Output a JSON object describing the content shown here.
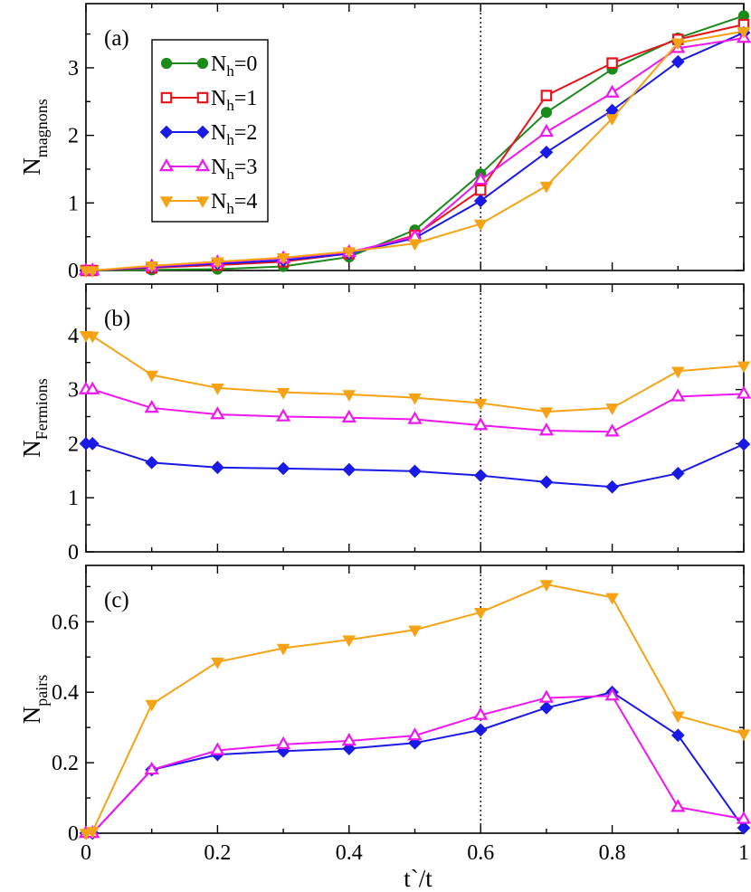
{
  "chart_data": [
    {
      "type": "line",
      "panel_label": "(a)",
      "ylabel_main": "N",
      "ylabel_sub": "magnons",
      "xlabel": "",
      "xlim": [
        0,
        1
      ],
      "ylim": [
        0,
        3.95
      ],
      "xticks": [
        0,
        0.2,
        0.4,
        0.6,
        0.8,
        1
      ],
      "xtick_labels": [],
      "yticks": [
        0,
        1,
        2,
        3
      ],
      "ytick_labels": [
        "0",
        "1",
        "2",
        "3"
      ],
      "vline_x": 0.6,
      "legend": {
        "position": "upper-left",
        "entries": [
          {
            "main": "N",
            "sub": "h",
            "suffix": "=0"
          },
          {
            "main": "N",
            "sub": "h",
            "suffix": "=1"
          },
          {
            "main": "N",
            "sub": "h",
            "suffix": "=2"
          },
          {
            "main": "N",
            "sub": "h",
            "suffix": "=3"
          },
          {
            "main": "N",
            "sub": "h",
            "suffix": "=4"
          }
        ]
      },
      "series": [
        {
          "name": "Nh=0",
          "color": "#1a8a1a",
          "marker": "circle",
          "x": [
            0,
            0.01,
            0.1,
            0.2,
            0.3,
            0.4,
            0.5,
            0.6,
            0.7,
            0.8,
            0.9,
            1.0
          ],
          "y": [
            0,
            0,
            0.01,
            0.02,
            0.06,
            0.2,
            0.6,
            1.43,
            2.34,
            2.98,
            3.44,
            3.77
          ]
        },
        {
          "name": "Nh=1",
          "color": "#e8141b",
          "marker": "square",
          "x": [
            0,
            0.01,
            0.1,
            0.2,
            0.3,
            0.4,
            0.5,
            0.6,
            0.7,
            0.8,
            0.9,
            1.0
          ],
          "y": [
            0,
            0,
            0.04,
            0.08,
            0.13,
            0.25,
            0.52,
            1.19,
            2.59,
            3.07,
            3.42,
            3.64
          ]
        },
        {
          "name": "Nh=2",
          "color": "#1a1ae6",
          "marker": "diamond",
          "x": [
            0,
            0.01,
            0.1,
            0.2,
            0.3,
            0.4,
            0.5,
            0.6,
            0.7,
            0.8,
            0.9,
            1.0
          ],
          "y": [
            0,
            0,
            0.05,
            0.1,
            0.15,
            0.25,
            0.48,
            1.03,
            1.75,
            2.37,
            3.09,
            3.52
          ]
        },
        {
          "name": "Nh=3",
          "color": "#ee17ee",
          "marker": "triangle-up",
          "x": [
            0,
            0.01,
            0.1,
            0.2,
            0.3,
            0.4,
            0.5,
            0.6,
            0.7,
            0.8,
            0.9,
            1.0
          ],
          "y": [
            0,
            0,
            0.06,
            0.12,
            0.18,
            0.27,
            0.5,
            1.34,
            2.05,
            2.63,
            3.29,
            3.44
          ]
        },
        {
          "name": "Nh=4",
          "color": "#f5a215",
          "marker": "triangle-down",
          "x": [
            0,
            0.01,
            0.1,
            0.2,
            0.3,
            0.4,
            0.5,
            0.6,
            0.7,
            0.8,
            0.9,
            1.0
          ],
          "y": [
            0,
            0,
            0.07,
            0.13,
            0.19,
            0.28,
            0.4,
            0.69,
            1.25,
            2.25,
            3.37,
            3.54
          ]
        }
      ]
    },
    {
      "type": "line",
      "panel_label": "(b)",
      "ylabel_main": "N",
      "ylabel_sub": "Fermions",
      "xlabel": "",
      "xlim": [
        0,
        1
      ],
      "ylim": [
        0,
        4.95
      ],
      "xticks": [
        0,
        0.2,
        0.4,
        0.6,
        0.8,
        1
      ],
      "xtick_labels": [],
      "yticks": [
        0,
        1,
        2,
        3,
        4
      ],
      "ytick_labels": [
        "0",
        "1",
        "2",
        "3",
        "4"
      ],
      "vline_x": 0.6,
      "series": [
        {
          "name": "Nh=2",
          "color": "#1a1ae6",
          "marker": "diamond",
          "x": [
            0,
            0.01,
            0.1,
            0.2,
            0.3,
            0.4,
            0.5,
            0.6,
            0.7,
            0.8,
            0.9,
            1.0
          ],
          "y": [
            2,
            2,
            1.65,
            1.56,
            1.54,
            1.52,
            1.49,
            1.41,
            1.29,
            1.2,
            1.45,
            1.99
          ]
        },
        {
          "name": "Nh=3",
          "color": "#ee17ee",
          "marker": "triangle-up",
          "x": [
            0,
            0.01,
            0.1,
            0.2,
            0.3,
            0.4,
            0.5,
            0.6,
            0.7,
            0.8,
            0.9,
            1.0
          ],
          "y": [
            3,
            3,
            2.66,
            2.54,
            2.5,
            2.48,
            2.45,
            2.34,
            2.24,
            2.22,
            2.87,
            2.92
          ]
        },
        {
          "name": "Nh=4",
          "color": "#f5a215",
          "marker": "triangle-down",
          "x": [
            0,
            0.01,
            0.1,
            0.2,
            0.3,
            0.4,
            0.5,
            0.6,
            0.7,
            0.8,
            0.9,
            1.0
          ],
          "y": [
            4,
            3.99,
            3.27,
            3.03,
            2.95,
            2.91,
            2.85,
            2.75,
            2.59,
            2.66,
            3.34,
            3.44
          ]
        }
      ]
    },
    {
      "type": "line",
      "panel_label": "(c)",
      "ylabel_main": "N",
      "ylabel_sub": "pairs",
      "xlabel": "t`/t",
      "xlim": [
        0,
        1
      ],
      "ylim": [
        0,
        0.76
      ],
      "xticks": [
        0,
        0.2,
        0.4,
        0.6,
        0.8,
        1
      ],
      "xtick_labels": [
        "0",
        "0.2",
        "0.4",
        "0.6",
        "0.8",
        "1"
      ],
      "yticks": [
        0,
        0.2,
        0.4,
        0.6
      ],
      "ytick_labels": [
        "0",
        "0.2",
        "0.4",
        "0.6"
      ],
      "vline_x": 0.6,
      "series": [
        {
          "name": "Nh=2",
          "color": "#1a1ae6",
          "marker": "diamond",
          "x": [
            0,
            0.01,
            0.1,
            0.2,
            0.3,
            0.4,
            0.5,
            0.6,
            0.7,
            0.8,
            0.9,
            1.0
          ],
          "y": [
            0,
            0,
            0.18,
            0.223,
            0.233,
            0.24,
            0.256,
            0.293,
            0.356,
            0.4,
            0.278,
            0.015
          ]
        },
        {
          "name": "Nh=3",
          "color": "#ee17ee",
          "marker": "triangle-up",
          "x": [
            0,
            0.01,
            0.1,
            0.2,
            0.3,
            0.4,
            0.5,
            0.6,
            0.7,
            0.8,
            0.9,
            1.0
          ],
          "y": [
            0,
            0,
            0.18,
            0.235,
            0.252,
            0.262,
            0.277,
            0.335,
            0.384,
            0.39,
            0.074,
            0.04
          ]
        },
        {
          "name": "Nh=4",
          "color": "#f5a215",
          "marker": "triangle-down",
          "x": [
            0,
            0.01,
            0.1,
            0.2,
            0.3,
            0.4,
            0.5,
            0.6,
            0.7,
            0.8,
            0.9,
            1.0
          ],
          "y": [
            0,
            0.005,
            0.366,
            0.486,
            0.525,
            0.549,
            0.577,
            0.627,
            0.706,
            0.669,
            0.333,
            0.282
          ]
        }
      ]
    }
  ]
}
